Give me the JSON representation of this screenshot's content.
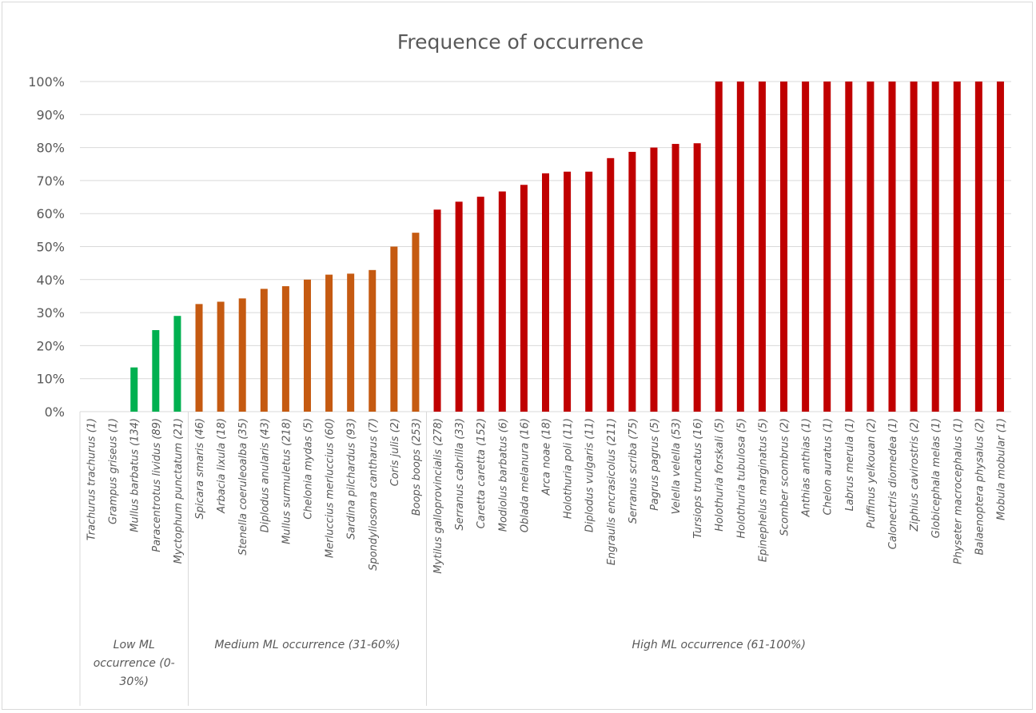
{
  "chart_data": {
    "type": "bar",
    "title": "Frequence of occurrence",
    "ylim": [
      0,
      100
    ],
    "yticks": [
      "0%",
      "10%",
      "20%",
      "30%",
      "40%",
      "50%",
      "60%",
      "70%",
      "80%",
      "90%",
      "100%"
    ],
    "grid": true,
    "colors": {
      "low": "#00b050",
      "medium": "#c55a11",
      "high": "#c00000",
      "grid": "#d9d9d9",
      "text": "#595959"
    },
    "groups": [
      {
        "label_lines": [
          "Low ML",
          "occurrence (0-",
          "30%)"
        ],
        "color_key": "low",
        "start": 0,
        "end": 5
      },
      {
        "label_lines": [
          "Medium ML occurrence (31-60%)"
        ],
        "color_key": "medium",
        "start": 5,
        "end": 16
      },
      {
        "label_lines": [
          "High ML occurrence (61-100%)"
        ],
        "color_key": "high",
        "start": 16,
        "end": 43
      }
    ],
    "categories": [
      "Trachurus trachurus (1)",
      "Grampus griseus (1)",
      "Mullus barbatus (134)",
      "Paracentrotus lividus (89)",
      "Myctophum punctatum (21)",
      "Spicara smaris (46)",
      "Arbacia lixula (18)",
      "Stenella coeruleoalba (35)",
      "Diplodus anularis (43)",
      "Mullus surmuletus (218)",
      "Chelonia mydas (5)",
      "Merluccius merluccius (60)",
      "Sardina pilchardus (93)",
      "Spondyliosoma cantharus (7)",
      "Coris julis (2)",
      "Boops boops (253)",
      "Mytilus galloprovincialis (278)",
      "Serranus cabrilla (33)",
      "Caretta caretta (152)",
      "Modiolus barbatus (6)",
      "Oblada melanura (16)",
      "Arca noae (18)",
      "Holothuria poli (11)",
      "Diplodus vulgaris (11)",
      "Engraulis encrasicolus (211)",
      "Serranus scriba (75)",
      "Pagrus pagrus (5)",
      "Velella velella (53)",
      "Tursiops truncatus (16)",
      "Holothuria forskali (5)",
      "Holothuria tubulosa (5)",
      "Epinephelus marginatus (5)",
      "Scomber scombrus (2)",
      "Anthias anthias (1)",
      "Chelon auratus (1)",
      "Labrus merula (1)",
      "Puffinus yelkouan (2)",
      "Calonectris diomedea (1)",
      "Ziphius cavirostris (2)",
      "Globicephala melas (1)",
      "Physeter macrocephalus (1)",
      "Balaenoptera physalus (2)",
      "Mobula mobular (1)"
    ],
    "values": [
      0,
      0,
      13.4,
      24.7,
      29,
      32.6,
      33.3,
      34.3,
      37.2,
      38,
      40,
      41.5,
      41.8,
      42.9,
      50,
      54.2,
      61.2,
      63.6,
      65.1,
      66.7,
      68.7,
      72.2,
      72.7,
      72.7,
      76.8,
      78.7,
      80,
      81.1,
      81.3,
      100,
      100,
      100,
      100,
      100,
      100,
      100,
      100,
      100,
      100,
      100,
      100,
      100,
      100
    ]
  }
}
